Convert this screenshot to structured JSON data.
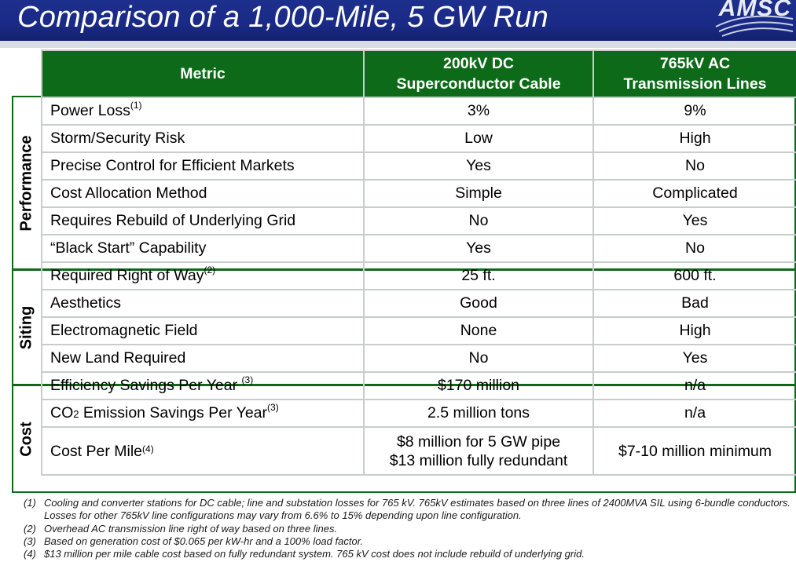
{
  "header": {
    "title": "Comparison of a 1,000-Mile, 5 GW Run",
    "logo": "AMSC"
  },
  "table": {
    "headers": {
      "metric": "Metric",
      "dc_line1": "200kV DC",
      "dc_line2": "Superconductor Cable",
      "ac_line1": "765kV AC",
      "ac_line2": "Transmission Lines"
    },
    "sections": [
      {
        "label": "Performance",
        "rows": [
          {
            "metric": "Power Loss",
            "note": "(1)",
            "dc": "3%",
            "ac": "9%"
          },
          {
            "metric": "Storm/Security Risk",
            "note": "",
            "dc": "Low",
            "ac": "High"
          },
          {
            "metric": "Precise Control for Efficient Markets",
            "note": "",
            "dc": "Yes",
            "ac": "No"
          },
          {
            "metric": "Cost Allocation Method",
            "note": "",
            "dc": "Simple",
            "ac": "Complicated"
          },
          {
            "metric": "Requires Rebuild of Underlying Grid",
            "note": "",
            "dc": "No",
            "ac": "Yes"
          },
          {
            "metric": "“Black Start” Capability",
            "note": "",
            "dc": "Yes",
            "ac": "No"
          }
        ]
      },
      {
        "label": "Siting",
        "rows": [
          {
            "metric": "Required Right of Way",
            "note": "(2)",
            "dc": "25 ft.",
            "ac": "600 ft."
          },
          {
            "metric": "Aesthetics",
            "note": "",
            "dc": "Good",
            "ac": "Bad"
          },
          {
            "metric": "Electromagnetic Field",
            "note": "",
            "dc": "None",
            "ac": "High"
          },
          {
            "metric": "New Land Required",
            "note": "",
            "dc": "No",
            "ac": "Yes"
          }
        ]
      },
      {
        "label": "Cost",
        "rows": [
          {
            "metric": "Efficiency Savings Per Year ",
            "note": "(3)",
            "dc": "$170 million",
            "ac": "n/a"
          },
          {
            "metric_pre": "CO",
            "metric_sub": "2",
            "metric_post": " Emission Savings Per Year",
            "note": "(3)",
            "dc": "2.5 million tons",
            "ac": "n/a"
          },
          {
            "metric": "Cost Per Mile",
            "note": "(4)",
            "dc_line1": "$8 million for 5 GW pipe",
            "dc_line2": "$13 million fully redundant",
            "ac": "$7-10 million minimum"
          }
        ]
      }
    ]
  },
  "footnotes": [
    {
      "num": "(1)",
      "text": "Cooling and converter stations for DC cable; line and substation losses for 765 kV. 765kV estimates based on three lines of 2400MVA SIL using 6-bundle conductors. Losses for other 765kV line configurations may vary from 6.6% to 15% depending upon line configuration."
    },
    {
      "num": "(2)",
      "text": "Overhead AC transmission line right of way based on three lines."
    },
    {
      "num": "(3)",
      "text": "Based on generation cost of $0.065 per kW-hr and a 100% load factor."
    },
    {
      "num": "(4)",
      "text": "$13 million per mile cable cost based on fully redundant system. 765 kV cost does not include rebuild of underlying grid."
    }
  ]
}
